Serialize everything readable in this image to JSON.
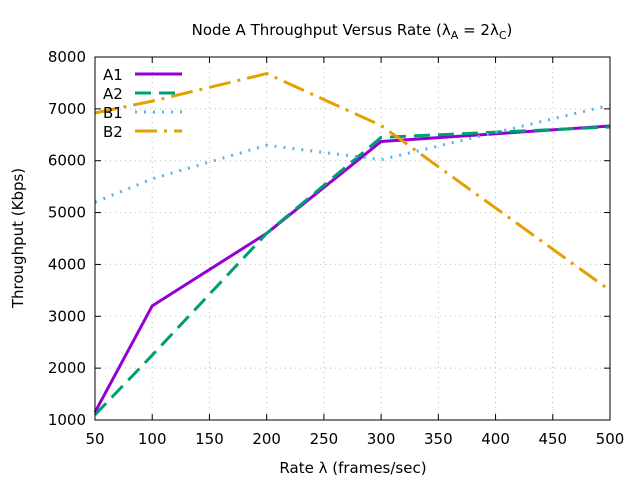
{
  "chart_data": {
    "type": "line",
    "title": "Node A Throughput Versus Rate (λ",
    "title_parts": {
      "sub_a": "A",
      "mid": " = 2λ",
      "sub_c": "C",
      "end": ")"
    },
    "xlabel": "Rate λ (frames/sec)",
    "ylabel": "Throughput (Kbps)",
    "xlim": [
      50,
      500
    ],
    "ylim": [
      1000,
      8000
    ],
    "xticks": [
      50,
      100,
      150,
      200,
      250,
      300,
      350,
      400,
      450,
      500
    ],
    "yticks": [
      1000,
      2000,
      3000,
      4000,
      5000,
      6000,
      7000,
      8000
    ],
    "grid": true,
    "legend_position": "top-left",
    "x": [
      50,
      100,
      200,
      300,
      500
    ],
    "series": [
      {
        "name": "A1",
        "color": "#9400d3",
        "style": "solid",
        "values": [
          1150,
          3200,
          4600,
          6370,
          6670
        ]
      },
      {
        "name": "A2",
        "color": "#009e73",
        "style": "dashed",
        "values": [
          1100,
          2250,
          4600,
          6450,
          6650
        ]
      },
      {
        "name": "B1",
        "color": "#56b4e9",
        "style": "dotted",
        "values": [
          5200,
          5650,
          6300,
          6020,
          7070
        ]
      },
      {
        "name": "B2",
        "color": "#e69f00",
        "style": "dashdot",
        "values": [
          6920,
          7150,
          7680,
          6680,
          3500
        ]
      }
    ]
  }
}
